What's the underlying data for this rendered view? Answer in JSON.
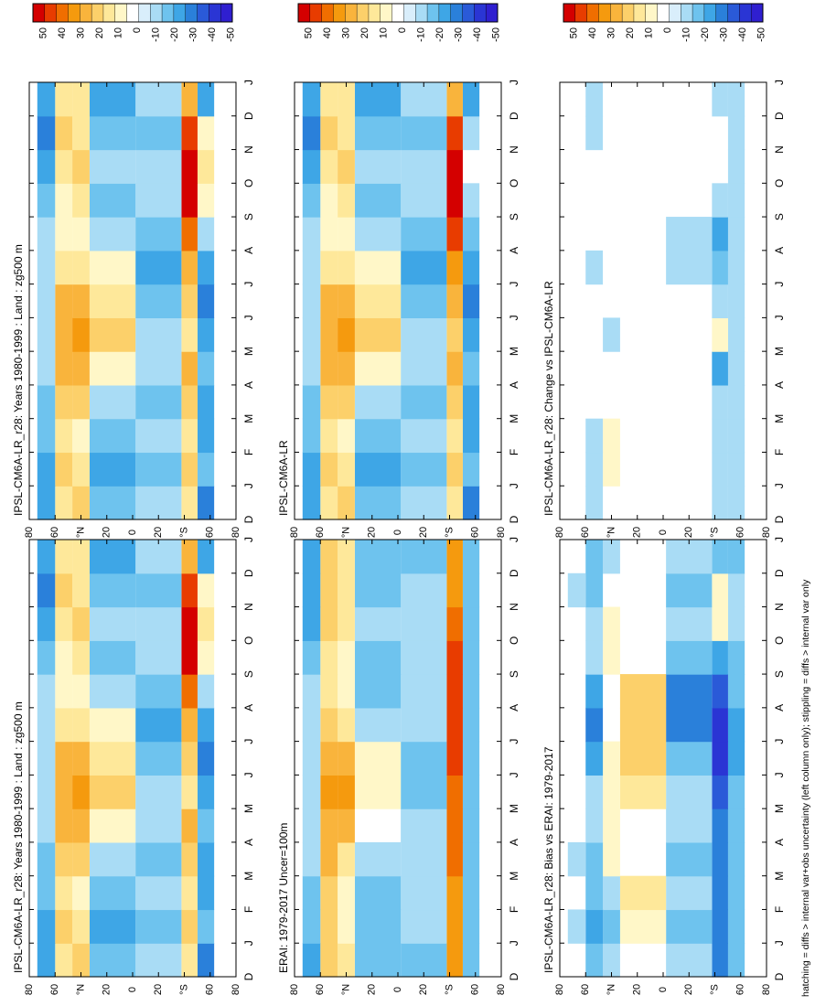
{
  "chart_data": [
    {
      "type": "heatmap",
      "title": "IPSL-CM6A-LR_r28: Years 1980-1999 : Land : zg500 m",
      "x_ticks": [
        "D",
        "J",
        "F",
        "M",
        "A",
        "M",
        "J",
        "J",
        "A",
        "S",
        "O",
        "N",
        "D",
        "J"
      ],
      "y_ticks": [
        "80",
        "60",
        "°N",
        "20",
        "0",
        "20",
        "°S",
        "60",
        "80"
      ],
      "y_range": [
        -90,
        90
      ],
      "colorbar": [
        "50",
        "40",
        "30",
        "20",
        "10",
        "0",
        "-10",
        "-20",
        "-30",
        "-40",
        "-50"
      ],
      "bands": [
        {
          "lat": 75,
          "values": [
            -15,
            -15,
            -10,
            -10,
            -5,
            -5,
            -5,
            -5,
            -5,
            -10,
            -15,
            -20,
            -15,
            -15
          ]
        },
        {
          "lat": 60,
          "values": [
            10,
            15,
            10,
            15,
            20,
            25,
            20,
            10,
            5,
            5,
            10,
            15,
            10,
            10
          ]
        },
        {
          "lat": 45,
          "values": [
            15,
            10,
            5,
            15,
            25,
            35,
            25,
            10,
            5,
            10,
            15,
            10,
            10,
            15
          ]
        },
        {
          "lat": 30,
          "values": [
            -10,
            -15,
            -10,
            -5,
            5,
            15,
            10,
            5,
            -5,
            -10,
            -5,
            -10,
            -15,
            -10
          ]
        },
        {
          "lat": -35,
          "values": [
            -5,
            -10,
            -5,
            -10,
            -5,
            -5,
            -10,
            -15,
            -10,
            -5,
            -5,
            -10,
            -5,
            -5
          ]
        },
        {
          "lat": -50,
          "values": [
            10,
            15,
            10,
            15,
            25,
            10,
            15,
            20,
            40,
            50,
            50,
            45,
            20,
            10
          ]
        },
        {
          "lat": -63,
          "values": [
            -20,
            -10,
            -15,
            -15,
            -10,
            -15,
            -20,
            -15,
            -5,
            5,
            10,
            5,
            -15,
            -20
          ]
        }
      ]
    },
    {
      "type": "heatmap",
      "title": "IPSL-CM6A-LR_r28: Years 1980-1999 : Land : zg500 m",
      "x_ticks": [
        "D",
        "J",
        "F",
        "M",
        "A",
        "M",
        "J",
        "J",
        "A",
        "S",
        "O",
        "N",
        "D",
        "J"
      ],
      "y_ticks": [
        "80",
        "60",
        "°N",
        "20",
        "0",
        "20",
        "°S",
        "60",
        "80"
      ],
      "y_range": [
        -90,
        90
      ],
      "colorbar": [
        "50",
        "40",
        "30",
        "20",
        "10",
        "0",
        "-10",
        "-20",
        "-30",
        "-40",
        "-50"
      ],
      "bands": [
        {
          "lat": 75,
          "values": [
            -15,
            -15,
            -10,
            -10,
            -5,
            -5,
            -5,
            -5,
            -5,
            -10,
            -15,
            -20,
            -15,
            -15
          ]
        },
        {
          "lat": 60,
          "values": [
            10,
            15,
            10,
            15,
            20,
            25,
            20,
            10,
            5,
            5,
            10,
            15,
            10,
            10
          ]
        },
        {
          "lat": 45,
          "values": [
            15,
            10,
            5,
            15,
            25,
            35,
            25,
            10,
            5,
            10,
            15,
            10,
            10,
            15
          ]
        },
        {
          "lat": 30,
          "values": [
            -10,
            -15,
            -10,
            -5,
            5,
            15,
            10,
            5,
            -5,
            -10,
            -5,
            -10,
            -15,
            -10
          ]
        },
        {
          "lat": -35,
          "values": [
            -5,
            -10,
            -5,
            -10,
            -5,
            -5,
            -10,
            -15,
            -10,
            -5,
            -5,
            -10,
            -5,
            -5
          ]
        },
        {
          "lat": -50,
          "values": [
            10,
            15,
            10,
            15,
            25,
            10,
            15,
            20,
            40,
            50,
            50,
            45,
            20,
            10
          ]
        },
        {
          "lat": -63,
          "values": [
            -20,
            -10,
            -15,
            -15,
            -10,
            -15,
            -20,
            -15,
            -5,
            5,
            10,
            5,
            -15,
            -20
          ]
        }
      ]
    },
    {
      "type": "heatmap",
      "title": "ERAI: 1979-2017 Uncer=100m",
      "x_ticks": [
        "D",
        "J",
        "F",
        "M",
        "A",
        "M",
        "J",
        "J",
        "A",
        "S",
        "O",
        "N",
        "D",
        "J"
      ],
      "y_ticks": [
        "80",
        "60",
        "°N",
        "20",
        "0",
        "20",
        "°S",
        "60",
        "80"
      ],
      "y_range": [
        -90,
        90
      ],
      "colorbar": [
        "50",
        "40",
        "30",
        "20",
        "10",
        "0",
        "-10",
        "-20",
        "-30",
        "-40",
        "-50"
      ],
      "bands": [
        {
          "lat": 75,
          "values": [
            -15,
            -10,
            -10,
            -5,
            -5,
            -5,
            -5,
            -5,
            -5,
            -10,
            -15,
            -15,
            -15,
            -15
          ]
        },
        {
          "lat": 60,
          "values": [
            15,
            15,
            15,
            20,
            25,
            30,
            25,
            15,
            10,
            10,
            15,
            15,
            15,
            15
          ]
        },
        {
          "lat": 45,
          "values": [
            10,
            5,
            5,
            10,
            20,
            30,
            20,
            10,
            5,
            5,
            10,
            10,
            10,
            10
          ]
        },
        {
          "lat": 30,
          "values": [
            -10,
            -10,
            -10,
            -5,
            0,
            5,
            5,
            -5,
            -10,
            -10,
            -5,
            -10,
            -10,
            -10
          ]
        },
        {
          "lat": -35,
          "values": [
            -10,
            -5,
            -5,
            -5,
            -5,
            -10,
            -10,
            -5,
            -5,
            -5,
            -5,
            -5,
            -10,
            -10
          ]
        },
        {
          "lat": -50,
          "values": [
            30,
            35,
            35,
            40,
            40,
            40,
            45,
            45,
            45,
            45,
            40,
            35,
            30,
            30
          ]
        },
        {
          "lat": -63,
          "values": [
            -10,
            -10,
            -10,
            -10,
            -10,
            -10,
            -10,
            -10,
            -10,
            -10,
            -10,
            -10,
            -10,
            -10
          ]
        }
      ]
    },
    {
      "type": "heatmap",
      "title": "IPSL-CM6A-LR",
      "x_ticks": [
        "D",
        "J",
        "F",
        "M",
        "A",
        "M",
        "J",
        "J",
        "A",
        "S",
        "O",
        "N",
        "D",
        "J"
      ],
      "y_ticks": [
        "80",
        "60",
        "°N",
        "20",
        "0",
        "20",
        "°S",
        "60",
        "80"
      ],
      "y_range": [
        -90,
        90
      ],
      "colorbar": [
        "50",
        "40",
        "30",
        "20",
        "10",
        "0",
        "-10",
        "-20",
        "-30",
        "-40",
        "-50"
      ],
      "bands": [
        {
          "lat": 75,
          "values": [
            -15,
            -15,
            -10,
            -10,
            -5,
            -5,
            -5,
            -5,
            -5,
            -10,
            -15,
            -20,
            -15,
            -15
          ]
        },
        {
          "lat": 60,
          "values": [
            10,
            15,
            10,
            15,
            20,
            25,
            20,
            10,
            5,
            5,
            10,
            15,
            10,
            10
          ]
        },
        {
          "lat": 45,
          "values": [
            15,
            10,
            5,
            15,
            25,
            35,
            25,
            10,
            5,
            10,
            15,
            10,
            10,
            15
          ]
        },
        {
          "lat": 30,
          "values": [
            -10,
            -15,
            -10,
            -5,
            5,
            15,
            10,
            5,
            -5,
            -10,
            -5,
            -10,
            -15,
            -10
          ]
        },
        {
          "lat": -35,
          "values": [
            -5,
            -10,
            -5,
            -10,
            -5,
            -5,
            -10,
            -15,
            -10,
            -5,
            -5,
            -10,
            -5,
            -5
          ]
        },
        {
          "lat": -50,
          "values": [
            10,
            15,
            10,
            15,
            25,
            15,
            20,
            30,
            45,
            50,
            50,
            45,
            25,
            10
          ]
        },
        {
          "lat": -63,
          "values": [
            -20,
            -10,
            -15,
            -15,
            -10,
            -15,
            -20,
            -15,
            -10,
            -5,
            0,
            -5,
            -15,
            -20
          ]
        }
      ]
    },
    {
      "type": "heatmap",
      "title": "IPSL-CM6A-LR_r28: Bias vs ERAI: 1979-2017",
      "x_ticks": [
        "D",
        "J",
        "F",
        "M",
        "A",
        "M",
        "J",
        "J",
        "A",
        "S",
        "O",
        "N",
        "D",
        "J"
      ],
      "y_ticks": [
        "80",
        "60",
        "°N",
        "20",
        "0",
        "20",
        "°S",
        "60",
        "80"
      ],
      "y_range": [
        -90,
        90
      ],
      "colorbar": [
        "50",
        "40",
        "30",
        "20",
        "10",
        "0",
        "-10",
        "-20",
        "-30",
        "-40",
        "-50"
      ],
      "bands": [
        {
          "lat": 75,
          "values": [
            0,
            -5,
            0,
            -5,
            0,
            0,
            0,
            0,
            0,
            0,
            0,
            -5,
            0,
            0
          ]
        },
        {
          "lat": 60,
          "values": [
            -10,
            -15,
            -10,
            -10,
            -5,
            -5,
            -15,
            -20,
            -15,
            -5,
            -5,
            -10,
            -10,
            -10
          ]
        },
        {
          "lat": 45,
          "values": [
            -5,
            -10,
            -5,
            5,
            5,
            5,
            5,
            0,
            0,
            5,
            5,
            0,
            -5,
            -5
          ]
        },
        {
          "lat": 30,
          "values": [
            0,
            5,
            10,
            0,
            0,
            10,
            15,
            15,
            15,
            0,
            0,
            0,
            0,
            0
          ]
        },
        {
          "lat": -35,
          "values": [
            -5,
            -10,
            -5,
            -10,
            -5,
            -5,
            -10,
            -20,
            -20,
            -10,
            -5,
            -10,
            -5,
            -5
          ]
        },
        {
          "lat": -50,
          "values": [
            -20,
            -20,
            -20,
            -20,
            -25,
            -30,
            -40,
            -40,
            -30,
            -15,
            5,
            5,
            -10,
            -20
          ]
        },
        {
          "lat": -63,
          "values": [
            -10,
            -10,
            -10,
            -10,
            -10,
            -10,
            -15,
            -15,
            -10,
            -10,
            -5,
            -5,
            -10,
            -10
          ]
        }
      ]
    },
    {
      "type": "heatmap",
      "title": "IPSL-CM6A-LR_r28: Change vs IPSL-CM6A-LR",
      "x_ticks": [
        "D",
        "J",
        "F",
        "M",
        "A",
        "M",
        "J",
        "J",
        "A",
        "S",
        "O",
        "N",
        "D",
        "J"
      ],
      "y_ticks": [
        "80",
        "60",
        "°N",
        "20",
        "0",
        "20",
        "°S",
        "60",
        "80"
      ],
      "y_range": [
        -90,
        90
      ],
      "colorbar": [
        "50",
        "40",
        "30",
        "20",
        "10",
        "0",
        "-10",
        "-20",
        "-30",
        "-40",
        "-50"
      ],
      "bands": [
        {
          "lat": 75,
          "values": [
            0,
            0,
            0,
            0,
            0,
            0,
            0,
            0,
            0,
            0,
            0,
            0,
            0,
            0
          ]
        },
        {
          "lat": 60,
          "values": [
            -5,
            -5,
            -5,
            0,
            0,
            0,
            0,
            -5,
            0,
            0,
            0,
            -5,
            -5,
            -5
          ]
        },
        {
          "lat": 45,
          "values": [
            0,
            5,
            5,
            0,
            0,
            -5,
            0,
            0,
            0,
            0,
            0,
            0,
            0,
            0
          ]
        },
        {
          "lat": 30,
          "values": [
            0,
            0,
            0,
            0,
            0,
            0,
            0,
            0,
            0,
            0,
            0,
            0,
            0,
            0
          ]
        },
        {
          "lat": -35,
          "values": [
            0,
            0,
            0,
            0,
            0,
            0,
            0,
            -5,
            -5,
            0,
            0,
            0,
            0,
            0
          ]
        },
        {
          "lat": -50,
          "values": [
            -5,
            -5,
            -5,
            -5,
            -15,
            5,
            -5,
            -10,
            -15,
            -5,
            0,
            0,
            -5,
            -5
          ]
        },
        {
          "lat": -63,
          "values": [
            -5,
            -5,
            -5,
            -5,
            -5,
            -5,
            -5,
            -5,
            -5,
            -5,
            -5,
            -5,
            -5,
            -5
          ]
        }
      ]
    }
  ],
  "palette": {
    "positive": [
      "#d40000",
      "#e83c00",
      "#f06e00",
      "#f59a0e",
      "#f9b43c",
      "#fcd06a",
      "#fee89a",
      "#fff7c8"
    ],
    "neutral": "#ffffff",
    "negative": [
      "#d9eefb",
      "#a9dcf5",
      "#6ec3ee",
      "#3ea6e6",
      "#2a80da",
      "#2a5ad8",
      "#2a35d4",
      "#2f1fd0"
    ]
  },
  "footer": "hatching = diffs > internal var+obs uncertainty (left column only); stippling = diffs > internal var only"
}
